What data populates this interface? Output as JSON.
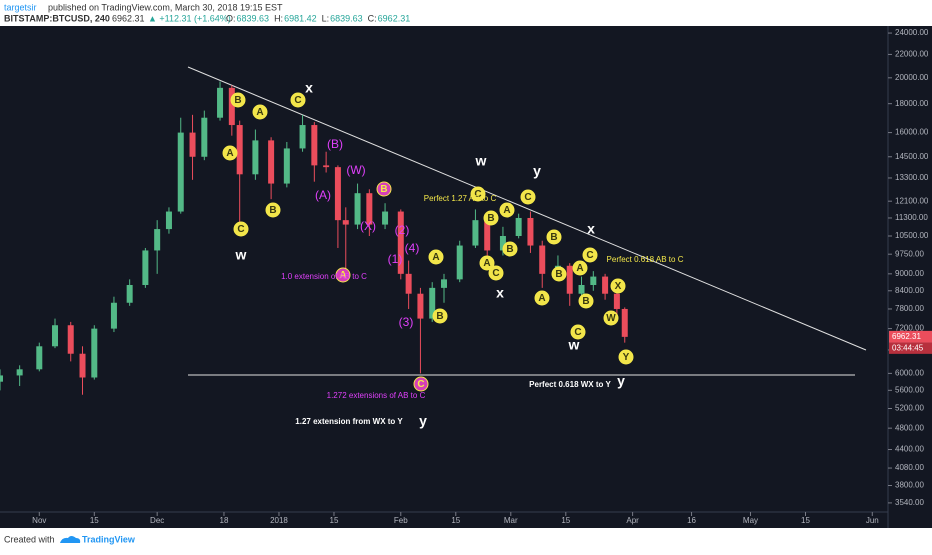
{
  "header": {
    "author": "targetsir",
    "published": "published on TradingView.com, March 30, 2018 19:15 EST",
    "symbol": "BITSTAMP:BTCUSD, 240",
    "last": "6962.31",
    "change": "▲ +112.31 (+1.64%)",
    "ohlc": [
      {
        "label": "O:",
        "value": "6839.63"
      },
      {
        "label": "H:",
        "value": "6981.42"
      },
      {
        "label": "L:",
        "value": "6839.63"
      },
      {
        "label": "C:",
        "value": "6962.31"
      }
    ]
  },
  "chart_data": {
    "type": "candlestick",
    "log_scale": true,
    "up_color": "#53b987",
    "down_color": "#eb4d5c",
    "x": [
      "2017-10-22",
      "2017-10-27",
      "2017-11-01",
      "2017-11-05",
      "2017-11-09",
      "2017-11-12",
      "2017-11-15",
      "2017-11-20",
      "2017-11-24",
      "2017-11-28",
      "2017-12-01",
      "2017-12-04",
      "2017-12-07",
      "2017-12-10",
      "2017-12-13",
      "2017-12-17",
      "2017-12-20",
      "2017-12-22",
      "2017-12-26",
      "2017-12-30",
      "2018-01-03",
      "2018-01-07",
      "2018-01-10",
      "2018-01-13",
      "2018-01-16",
      "2018-01-18",
      "2018-01-21",
      "2018-01-24",
      "2018-01-28",
      "2018-02-01",
      "2018-02-03",
      "2018-02-06",
      "2018-02-09",
      "2018-02-12",
      "2018-02-16",
      "2018-02-20",
      "2018-02-23",
      "2018-02-27",
      "2018-03-03",
      "2018-03-06",
      "2018-03-09",
      "2018-03-13",
      "2018-03-16",
      "2018-03-19",
      "2018-03-22",
      "2018-03-25",
      "2018-03-28",
      "2018-03-30"
    ],
    "open": [
      5800,
      5950,
      6100,
      6700,
      7300,
      6500,
      5900,
      7200,
      8000,
      8600,
      9900,
      10800,
      11600,
      16000,
      14500,
      17000,
      19200,
      16500,
      13500,
      15500,
      13000,
      15000,
      16500,
      14000,
      13900,
      11200,
      11000,
      12500,
      11000,
      11600,
      9000,
      8300,
      7500,
      8500,
      8800,
      10100,
      11200,
      9900,
      10500,
      11300,
      10100,
      9000,
      9300,
      8300,
      8600,
      8900,
      8300,
      7800
    ],
    "high": [
      6100,
      6200,
      6800,
      7500,
      7400,
      6700,
      7300,
      8200,
      8800,
      10000,
      11200,
      11800,
      17000,
      17200,
      17500,
      19700,
      19400,
      16800,
      16200,
      15700,
      15400,
      17200,
      16700,
      14800,
      14000,
      11800,
      13000,
      12700,
      12000,
      11700,
      9500,
      8500,
      8700,
      9000,
      10300,
      11700,
      11300,
      10900,
      11500,
      11600,
      10300,
      9700,
      9400,
      8900,
      9100,
      9000,
      8400,
      7850
    ],
    "low": [
      5600,
      5700,
      6050,
      6650,
      6300,
      5500,
      5850,
      7100,
      7900,
      8500,
      9000,
      10600,
      11500,
      13200,
      14300,
      16800,
      15800,
      11000,
      13200,
      12200,
      12800,
      14800,
      13100,
      13600,
      10000,
      9200,
      10800,
      10500,
      10800,
      8800,
      7800,
      6000,
      7400,
      8000,
      8700,
      10000,
      9600,
      9700,
      10400,
      9800,
      8500,
      8800,
      7900,
      8100,
      8400,
      8100,
      7400,
      6800
    ],
    "close": [
      5950,
      6100,
      6700,
      7300,
      6500,
      5900,
      7200,
      8000,
      8600,
      9900,
      10800,
      11600,
      16000,
      14500,
      17000,
      19200,
      16500,
      13500,
      15500,
      13000,
      15000,
      16500,
      14000,
      13900,
      11200,
      11000,
      12500,
      11000,
      11600,
      9000,
      8300,
      7500,
      8500,
      8800,
      10100,
      11200,
      9900,
      10500,
      11300,
      10100,
      9000,
      9300,
      8300,
      8600,
      8900,
      8300,
      7800,
      6962.31
    ],
    "xlim": [
      "2017-10-22",
      "2018-06-05"
    ],
    "xticks": [
      {
        "value": "2017-11-01",
        "label": "Nov"
      },
      {
        "value": "2017-11-15",
        "label": "15"
      },
      {
        "value": "2017-12-01",
        "label": "Dec"
      },
      {
        "value": "2017-12-18",
        "label": "18"
      },
      {
        "value": "2018-01-01",
        "label": "2018"
      },
      {
        "value": "2018-01-15",
        "label": "15"
      },
      {
        "value": "2018-02-01",
        "label": "Feb"
      },
      {
        "value": "2018-02-15",
        "label": "15"
      },
      {
        "value": "2018-03-01",
        "label": "Mar"
      },
      {
        "value": "2018-03-15",
        "label": "15"
      },
      {
        "value": "2018-04-01",
        "label": "Apr"
      },
      {
        "value": "2018-04-16",
        "label": "16"
      },
      {
        "value": "2018-05-01",
        "label": "May"
      },
      {
        "value": "2018-05-15",
        "label": "15"
      },
      {
        "value": "2018-06-01",
        "label": "Jun"
      }
    ],
    "ylim": [
      3196,
      24700
    ],
    "yticks": [
      {
        "value": 24000,
        "label": "24000.00"
      },
      {
        "value": 22000,
        "label": "22000.00"
      },
      {
        "value": 20000,
        "label": "20000.00"
      },
      {
        "value": 18000,
        "label": "18000.00"
      },
      {
        "value": 16000,
        "label": "16000.00"
      },
      {
        "value": 14500,
        "label": "14500.00"
      },
      {
        "value": 13300,
        "label": "13300.00"
      },
      {
        "value": 12100,
        "label": "12100.00"
      },
      {
        "value": 11300,
        "label": "11300.00"
      },
      {
        "value": 10500,
        "label": "10500.00"
      },
      {
        "value": 9750,
        "label": "9750.00"
      },
      {
        "value": 9000,
        "label": "9000.00"
      },
      {
        "value": 8400,
        "label": "8400.00"
      },
      {
        "value": 7800,
        "label": "7800.00"
      },
      {
        "value": 7200,
        "label": "7200.00"
      },
      {
        "value": 6600,
        "label": "6600.00"
      },
      {
        "value": 6000,
        "label": "6000.00"
      },
      {
        "value": 5600,
        "label": "5600.00"
      },
      {
        "value": 5200,
        "label": "5200.00"
      },
      {
        "value": 4800,
        "label": "4800.00"
      },
      {
        "value": 4400,
        "label": "4400.00"
      },
      {
        "value": 4080,
        "label": "4080.00"
      },
      {
        "value": 3800,
        "label": "3800.00"
      },
      {
        "value": 3540,
        "label": "3540.00"
      }
    ],
    "last_price": {
      "value": 6962.31,
      "label": "6962.31"
    },
    "countdown": "03:44:45",
    "annotations": [
      "B",
      "A",
      "C",
      "A",
      "B",
      "C",
      "x",
      "w",
      "(B)",
      "(A)",
      "(W)",
      "B",
      "(X)",
      "(2)",
      "(4)",
      "(1)",
      "(3)",
      "A",
      "1.0 extension of AB to C",
      "A",
      "B",
      "C",
      "1.272 extensions of AB to C",
      "1.27 extension from WX to Y",
      "y",
      "w",
      "y",
      "C",
      "Perfect 1.27 AB to C",
      "C",
      "B",
      "A",
      "B",
      "A",
      "C",
      "x",
      "B",
      "A",
      "B",
      "B",
      "A",
      "C",
      "x",
      "Perfect 0.618 AB to C",
      "X",
      "W",
      "C",
      "w",
      "Y",
      "Perfect 0.618 WX to Y",
      "y"
    ]
  },
  "footer": {
    "created": "Created with",
    "brand": "TradingView"
  }
}
